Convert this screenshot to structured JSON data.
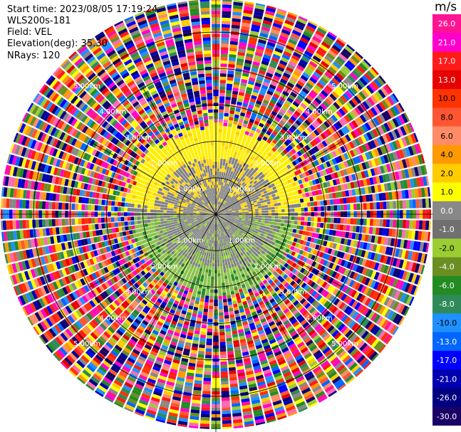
{
  "header": {
    "start_time": "Start time: 2023/08/05 17:19:24",
    "instrument": "WLS200s-181",
    "field": "Field: VEL",
    "elevation": "Elevation(deg): 35.30",
    "nrays": "NRays: 120"
  },
  "colorbar": {
    "unit": "m/s",
    "ticks": [
      "26.0",
      "21.0",
      "17.0",
      "13.0",
      "10.0",
      "8.0",
      "6.0",
      "4.0",
      "2.0",
      "1.0",
      "0.0",
      "-1.0",
      "-2.0",
      "-4.0",
      "-6.0",
      "-8.0",
      "-10.0",
      "-13.0",
      "-17.0",
      "-21.0",
      "-26.0",
      "-30.0"
    ],
    "colors": [
      "#ff1493",
      "#ff00cc",
      "#ff1a1a",
      "#e60000",
      "#ff3300",
      "#ff5533",
      "#ff8c66",
      "#ff9900",
      "#ffcc00",
      "#ffff00",
      "#888888",
      "#707070",
      "#9acd32",
      "#6b8e23",
      "#228b22",
      "#2e8b57",
      "#1e90ff",
      "#0066ff",
      "#0000ff",
      "#0000b0",
      "#000080",
      "#1a0066"
    ]
  },
  "chart_data": {
    "type": "ppi",
    "field": "VEL",
    "units": "m/s",
    "nrays": 120,
    "elevation_deg": 35.3,
    "range_rings_km": [
      {
        "value": 1.0,
        "label": "1.00km"
      },
      {
        "value": 2.0,
        "label": "2.00km"
      },
      {
        "value": 3.0,
        "label": "3.00km"
      },
      {
        "value": 4.0,
        "label": "4.00km"
      },
      {
        "value": 5.0,
        "label": "5.00km"
      }
    ],
    "max_range_km": 5.9,
    "coherent_regions": [
      {
        "description_value_ms": "0.0",
        "range_km": [
          0.0,
          1.6
        ]
      },
      {
        "description_value_ms": "1.0 to 2.0",
        "range_km": [
          1.6,
          2.3
        ],
        "sector": "north"
      },
      {
        "description_value_ms": "-1.0 to -4.0",
        "range_km": [
          1.6,
          2.3
        ],
        "sector": "south"
      },
      {
        "description_value_ms": "noise",
        "range_km": [
          2.3,
          5.9
        ]
      }
    ]
  }
}
